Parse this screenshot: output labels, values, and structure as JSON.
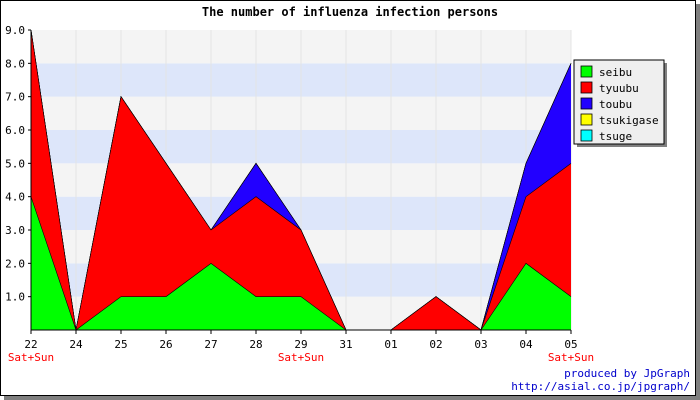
{
  "chart_data": {
    "type": "area",
    "stacked": true,
    "title": "The number of influenza infection persons",
    "categories": [
      "22",
      "24",
      "25",
      "26",
      "27",
      "28",
      "29",
      "31",
      "01",
      "02",
      "03",
      "04",
      "05"
    ],
    "weekend_labels": [
      "Sat+Sun",
      "",
      "",
      "",
      "",
      "",
      "Sat+Sun",
      "",
      "",
      "",
      "",
      "",
      "Sat+Sun"
    ],
    "ylim": [
      0,
      9
    ],
    "yticks": [
      "1.0",
      "2.0",
      "3.0",
      "4.0",
      "5.0",
      "6.0",
      "7.0",
      "8.0",
      "9.0"
    ],
    "grid": "horizontal bands",
    "legend_position": "right",
    "series": [
      {
        "name": "seibu",
        "color": "#00ff00",
        "values": [
          4,
          0,
          1,
          1,
          2,
          1,
          1,
          0,
          0,
          0,
          0,
          2,
          1
        ]
      },
      {
        "name": "tyuubu",
        "color": "#ff0000",
        "values": [
          5,
          0,
          6,
          4,
          1,
          3,
          2,
          0,
          0,
          1,
          0,
          2,
          4
        ]
      },
      {
        "name": "toubu",
        "color": "#2200ff",
        "values": [
          0,
          0,
          0,
          0,
          0,
          1,
          0,
          0,
          0,
          0,
          0,
          1,
          3
        ]
      },
      {
        "name": "tsukigase",
        "color": "#ffff00",
        "values": [
          0,
          0,
          0,
          0,
          0,
          0,
          0,
          0,
          0,
          0,
          0,
          0,
          0
        ]
      },
      {
        "name": "tsuge",
        "color": "#00ffff",
        "values": [
          0,
          0,
          0,
          0,
          0,
          0,
          0,
          0,
          0,
          0,
          0,
          0,
          0
        ]
      }
    ]
  },
  "footer": {
    "line1": "produced by JpGraph",
    "line2": "http://asial.co.jp/jpgraph/"
  }
}
